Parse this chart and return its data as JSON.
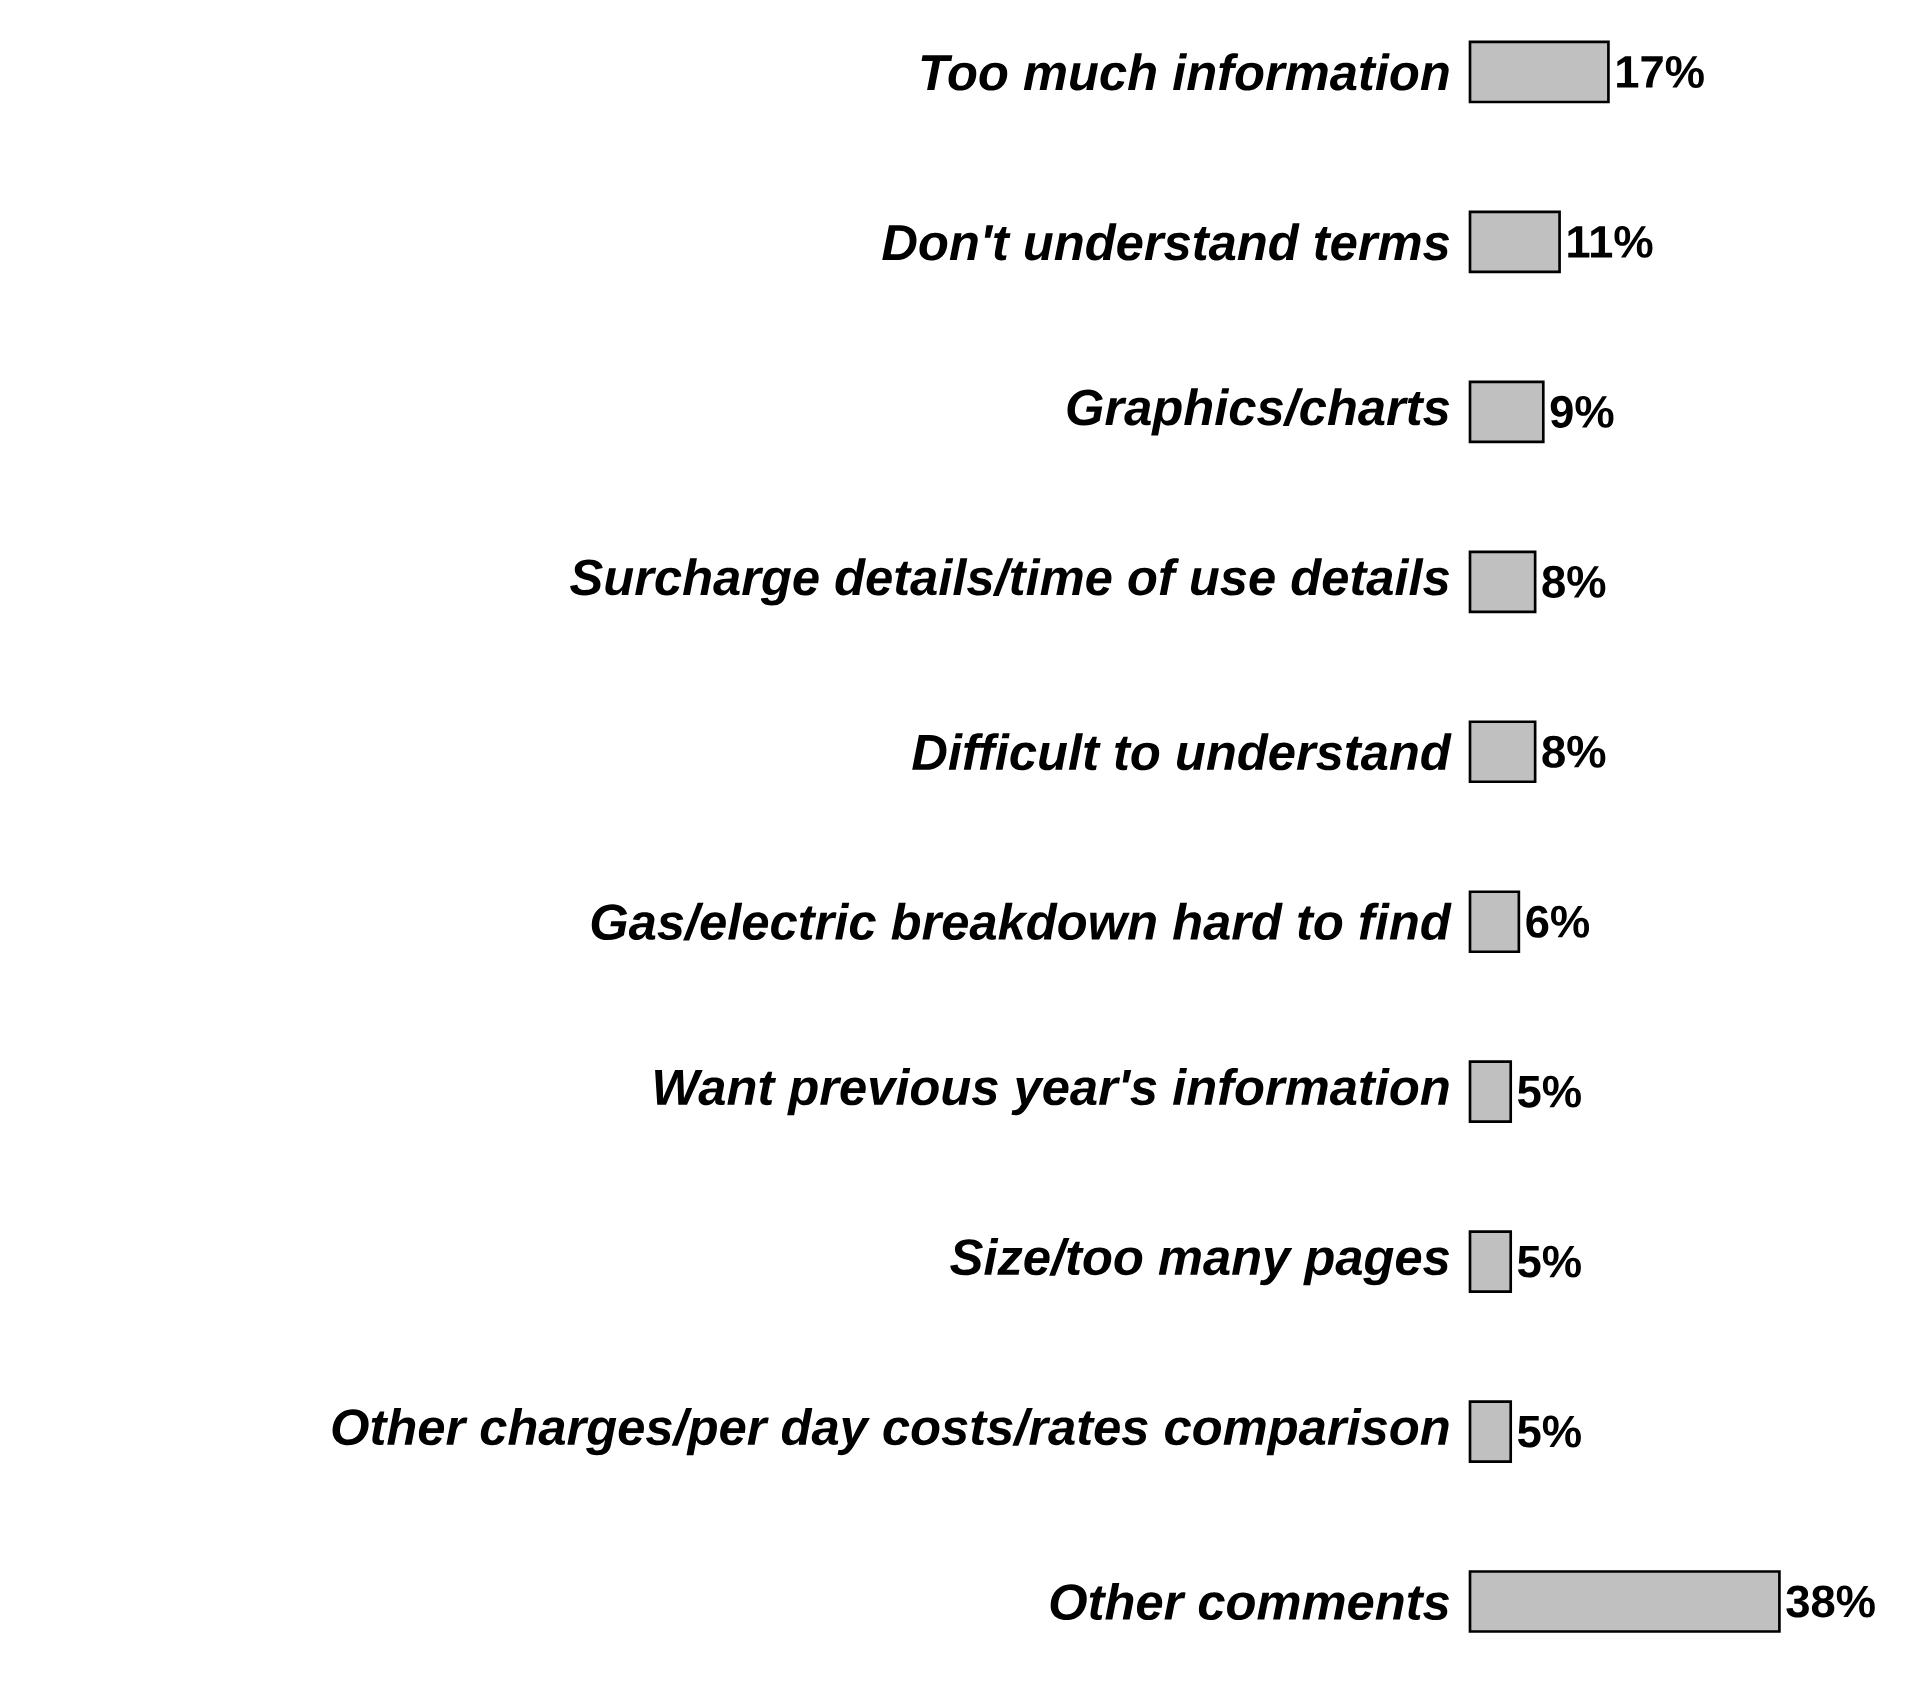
{
  "chart_data": {
    "type": "bar",
    "orientation": "horizontal",
    "categories": [
      "Too much information",
      "Don't understand terms",
      "Graphics/charts",
      "Surcharge details/time of use details",
      "Difficult to understand",
      "Gas/electric breakdown hard to find",
      "Want previous year's information",
      "Size/too many pages",
      "Other charges/per day costs/rates comparison",
      "Other comments"
    ],
    "values": [
      17,
      11,
      9,
      8,
      8,
      6,
      5,
      5,
      5,
      38
    ],
    "value_labels": [
      "17%",
      "11%",
      "9%",
      "8%",
      "8%",
      "6%",
      "5%",
      "5%",
      "5%",
      "38%"
    ],
    "color": "#c0c0c0"
  }
}
